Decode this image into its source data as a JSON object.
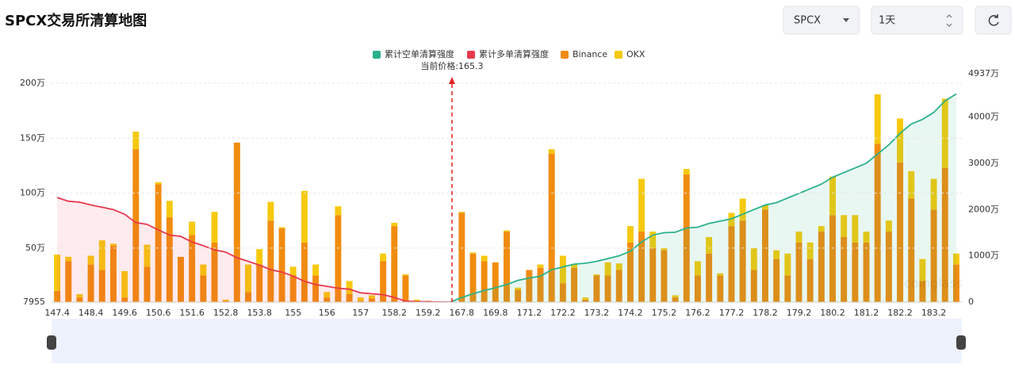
{
  "header": {
    "title": "SPCX交易所清算地图",
    "symbol": "SPCX",
    "interval": "1天"
  },
  "chart_data": {
    "type": "bar",
    "annotation": "当前价格:165.3",
    "current_price": 165.3,
    "watermark": "coinglass",
    "categories": [
      147.4,
      null,
      null,
      148.4,
      null,
      null,
      149.6,
      null,
      null,
      150.6,
      null,
      null,
      151.6,
      null,
      null,
      152.8,
      null,
      null,
      153.8,
      null,
      null,
      155,
      null,
      null,
      156,
      null,
      null,
      157,
      null,
      null,
      158.2,
      null,
      null,
      159.2,
      null,
      null,
      167.8,
      null,
      null,
      169.8,
      null,
      null,
      171.2,
      null,
      null,
      172.2,
      null,
      null,
      173.2,
      null,
      null,
      174.2,
      null,
      null,
      175.2,
      null,
      null,
      176.2,
      null,
      null,
      177.2,
      null,
      null,
      178.2,
      null,
      null,
      179.2,
      null,
      null,
      180.2,
      null,
      null,
      181.2,
      null,
      null,
      182.2,
      null,
      null,
      183.2,
      null,
      null
    ],
    "ylim": [
      7955,
      2087000
    ],
    "yticks": [
      7955,
      {
        "value": 500000,
        "label": "50万"
      },
      {
        "value": 1000000,
        "label": "100万"
      },
      {
        "value": 1500000,
        "label": "150万"
      },
      {
        "value": 2000000,
        "label": "200万"
      }
    ],
    "y2lim": [
      0,
      49370000
    ],
    "y2ticks": [
      0,
      {
        "value": 10000000,
        "label": "1000万"
      },
      {
        "value": 20000000,
        "label": "2000万"
      },
      {
        "value": 30000000,
        "label": "3000万"
      },
      {
        "value": 40000000,
        "label": "4000万"
      },
      {
        "value": 49370000,
        "label": "4937万"
      }
    ],
    "grid": true,
    "series": [
      {
        "name": "累计空单清算强度",
        "type": "line",
        "axis": "y2",
        "color": "#2bb18c",
        "values": [
          null,
          null,
          null,
          null,
          null,
          null,
          null,
          null,
          null,
          null,
          null,
          null,
          null,
          null,
          null,
          null,
          null,
          null,
          null,
          null,
          null,
          null,
          null,
          null,
          null,
          null,
          null,
          null,
          null,
          null,
          null,
          null,
          null,
          null,
          null,
          0,
          1000000,
          1800000,
          2500000,
          3100000,
          3800000,
          4700000,
          5200000,
          5600000,
          7000000,
          7600000,
          8200000,
          8400000,
          8800000,
          9400000,
          10000000,
          11000000,
          13000000,
          14500000,
          15000000,
          15100000,
          16000000,
          16200000,
          17000000,
          17500000,
          18000000,
          19000000,
          20000000,
          21000000,
          21500000,
          22500000,
          23500000,
          24500000,
          25500000,
          27000000,
          28000000,
          29000000,
          30000000,
          32000000,
          34000000,
          36500000,
          38500000,
          39500000,
          41000000,
          43500000,
          45000000
        ]
      },
      {
        "name": "累计多单清算强度",
        "type": "line",
        "axis": "y2",
        "color": "#e8384f",
        "values": [
          22600000,
          21800000,
          21600000,
          21000000,
          20500000,
          20000000,
          19000000,
          17200000,
          16800000,
          15600000,
          14500000,
          14200000,
          13000000,
          12200000,
          11300000,
          10800000,
          9600000,
          8800000,
          8000000,
          7000000,
          6500000,
          5600000,
          4500000,
          3800000,
          3400000,
          3000000,
          2800000,
          2000000,
          1800000,
          1600000,
          1000000,
          200000,
          100000,
          50000,
          20000,
          0,
          null,
          null,
          null,
          null,
          null,
          null,
          null,
          null,
          null,
          null,
          null,
          null,
          null,
          null,
          null,
          null,
          null,
          null,
          null,
          null,
          null,
          null,
          null,
          null,
          null,
          null,
          null,
          null,
          null,
          null,
          null,
          null,
          null,
          null,
          null,
          null,
          null,
          null,
          null,
          null,
          null,
          null,
          null,
          null,
          null
        ]
      },
      {
        "name": "Binance",
        "type": "bar",
        "color": "#f18c0f",
        "values": [
          110000,
          380000,
          50000,
          350000,
          300000,
          520000,
          50000,
          1400000,
          330000,
          1080000,
          780000,
          420000,
          620000,
          250000,
          550000,
          20000,
          1460000,
          100000,
          350000,
          750000,
          680000,
          250000,
          550000,
          250000,
          50000,
          800000,
          80000,
          20000,
          40000,
          380000,
          700000,
          250000,
          10000,
          20000,
          0,
          10000,
          820000,
          450000,
          380000,
          370000,
          650000,
          120000,
          300000,
          320000,
          1360000,
          180000,
          320000,
          30000,
          250000,
          250000,
          300000,
          550000,
          650000,
          500000,
          480000,
          50000,
          1170000,
          250000,
          450000,
          250000,
          700000,
          750000,
          300000,
          850000,
          400000,
          250000,
          550000,
          400000,
          650000,
          800000,
          600000,
          550000,
          550000,
          1450000,
          650000,
          1280000,
          950000,
          200000,
          850000,
          1230000,
          350000
        ]
      },
      {
        "name": "OKX",
        "type": "bar",
        "color": "#f6c90e",
        "values": [
          330000,
          40000,
          30000,
          80000,
          270000,
          20000,
          240000,
          160000,
          200000,
          20000,
          150000,
          0,
          120000,
          100000,
          280000,
          10000,
          0,
          250000,
          140000,
          170000,
          10000,
          80000,
          470000,
          100000,
          50000,
          80000,
          120000,
          30000,
          30000,
          70000,
          30000,
          10000,
          20000,
          0,
          10000,
          0,
          10000,
          10000,
          50000,
          0,
          10000,
          20000,
          0,
          30000,
          40000,
          250000,
          30000,
          20000,
          10000,
          120000,
          60000,
          150000,
          480000,
          150000,
          20000,
          20000,
          50000,
          130000,
          150000,
          20000,
          120000,
          200000,
          200000,
          40000,
          80000,
          200000,
          100000,
          150000,
          50000,
          350000,
          200000,
          250000,
          100000,
          450000,
          100000,
          400000,
          250000,
          200000,
          280000,
          630000,
          100000
        ]
      }
    ]
  }
}
